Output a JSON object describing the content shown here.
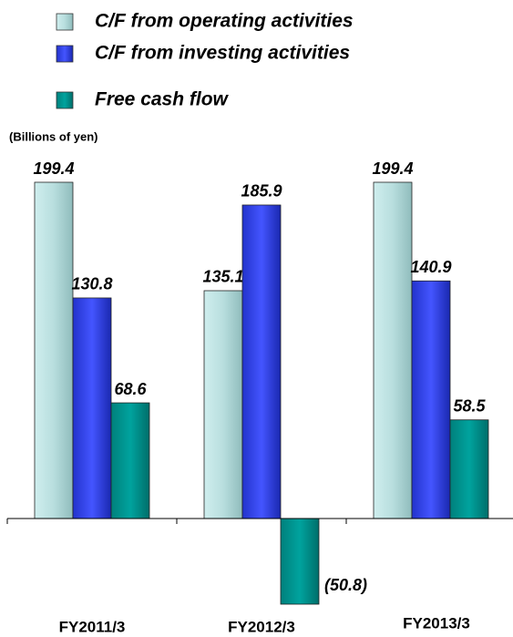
{
  "chart_data": {
    "type": "bar",
    "subtitle": "(Billions of yen)",
    "categories": [
      "FY2011/3",
      "FY2012/3",
      "FY2013/3"
    ],
    "series": [
      {
        "name": "C/F from operating activities",
        "color": "#b8dede",
        "values": [
          199.4,
          135.1,
          199.4
        ],
        "value_labels": [
          "199.4",
          "135.1",
          "199.4"
        ]
      },
      {
        "name": "C/F from investing activities",
        "color": "#3341ee",
        "values": [
          130.8,
          185.9,
          140.9
        ],
        "value_labels": [
          "130.8",
          "185.9",
          "140.9"
        ]
      },
      {
        "name": "Free cash flow",
        "color": "#009590",
        "values": [
          68.6,
          -50.8,
          58.5
        ],
        "value_labels": [
          "68.6",
          "(50.8)",
          "58.5"
        ]
      }
    ]
  }
}
